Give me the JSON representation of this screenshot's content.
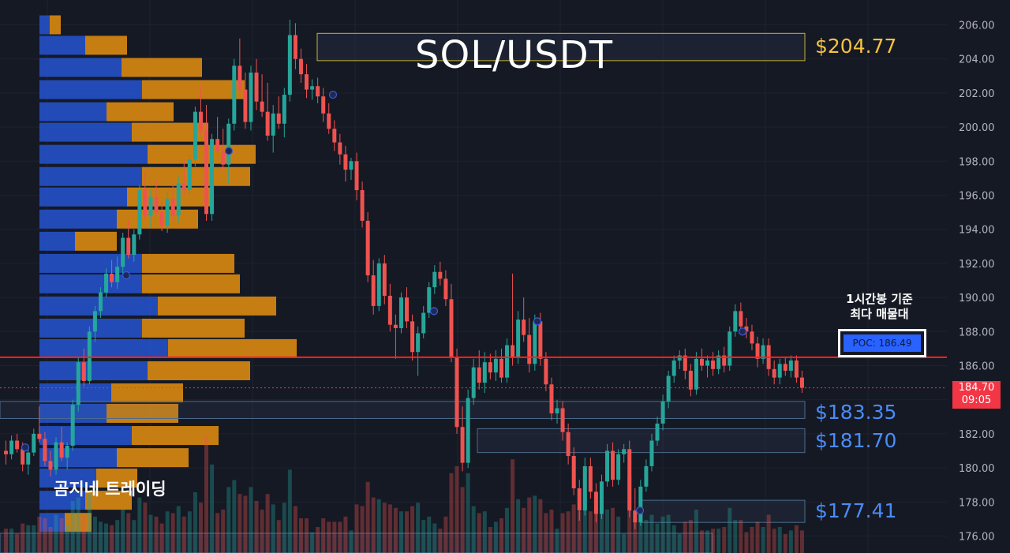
{
  "chart_data": {
    "type": "candlestick",
    "title": "SOL/USDT",
    "ylim": [
      175.5,
      206.5
    ],
    "y_ticks": [
      "206.00",
      "204.00",
      "202.00",
      "200.00",
      "198.00",
      "196.00",
      "194.00",
      "192.00",
      "190.00",
      "188.00",
      "186.00",
      "184.00",
      "182.00",
      "180.00",
      "178.00",
      "176.00"
    ],
    "y_tick_values": [
      206,
      204,
      202,
      200,
      198,
      196,
      194,
      192,
      190,
      188,
      186,
      184,
      182,
      180,
      178,
      176
    ],
    "candles": [
      [
        181.0,
        181.6,
        180.2,
        180.8
      ],
      [
        180.8,
        181.9,
        180.5,
        181.6
      ],
      [
        181.6,
        182.0,
        180.9,
        181.1
      ],
      [
        181.1,
        181.5,
        179.8,
        180.2
      ],
      [
        180.2,
        181.2,
        179.6,
        180.9
      ],
      [
        180.9,
        182.3,
        180.7,
        182.0
      ],
      [
        182.0,
        183.6,
        181.5,
        181.7
      ],
      [
        181.7,
        182.1,
        180.1,
        180.4
      ],
      [
        180.4,
        181.0,
        179.5,
        179.9
      ],
      [
        179.9,
        181.8,
        179.6,
        181.5
      ],
      [
        181.5,
        182.4,
        180.4,
        180.6
      ],
      [
        180.6,
        181.5,
        179.9,
        181.3
      ],
      [
        181.3,
        184.0,
        181.0,
        183.7
      ],
      [
        183.7,
        186.5,
        183.3,
        186.2
      ],
      [
        186.2,
        187.0,
        184.8,
        185.1
      ],
      [
        185.1,
        188.3,
        184.9,
        188.0
      ],
      [
        188.0,
        189.5,
        187.4,
        189.2
      ],
      [
        189.2,
        190.6,
        188.8,
        190.3
      ],
      [
        190.3,
        191.7,
        190.0,
        191.4
      ],
      [
        191.4,
        192.2,
        190.6,
        190.9
      ],
      [
        190.9,
        192.4,
        190.5,
        191.8
      ],
      [
        191.8,
        193.8,
        191.3,
        193.5
      ],
      [
        193.5,
        194.6,
        192.3,
        192.5
      ],
      [
        192.5,
        194.0,
        192.1,
        193.7
      ],
      [
        193.7,
        196.6,
        193.4,
        196.3
      ],
      [
        196.3,
        197.4,
        194.5,
        194.8
      ],
      [
        194.8,
        196.3,
        194.1,
        195.9
      ],
      [
        195.9,
        196.9,
        194.8,
        195.0
      ],
      [
        195.0,
        195.6,
        193.9,
        194.2
      ],
      [
        194.2,
        196.2,
        193.8,
        195.8
      ],
      [
        195.8,
        196.8,
        194.5,
        194.8
      ],
      [
        194.8,
        197.1,
        194.4,
        196.7
      ],
      [
        196.7,
        198.1,
        196.0,
        196.3
      ],
      [
        196.3,
        198.4,
        196.0,
        198.1
      ],
      [
        198.1,
        201.2,
        197.7,
        200.9
      ],
      [
        200.9,
        202.4,
        199.5,
        199.8
      ],
      [
        199.8,
        201.3,
        194.5,
        194.9
      ],
      [
        194.9,
        199.6,
        194.5,
        199.3
      ],
      [
        199.3,
        200.6,
        198.3,
        198.6
      ],
      [
        198.6,
        199.9,
        197.4,
        197.8
      ],
      [
        197.8,
        200.5,
        196.7,
        200.2
      ],
      [
        200.2,
        204.0,
        199.8,
        203.6
      ],
      [
        203.6,
        205.2,
        201.8,
        202.2
      ],
      [
        202.2,
        203.2,
        199.9,
        200.3
      ],
      [
        200.3,
        203.6,
        199.8,
        203.2
      ],
      [
        203.2,
        204.0,
        201.0,
        201.5
      ],
      [
        201.5,
        203.1,
        200.6,
        200.9
      ],
      [
        200.9,
        202.6,
        199.2,
        199.5
      ],
      [
        199.5,
        201.3,
        198.5,
        200.8
      ],
      [
        200.8,
        201.8,
        199.9,
        200.2
      ],
      [
        200.2,
        202.3,
        199.4,
        201.9
      ],
      [
        201.9,
        206.3,
        201.5,
        205.4
      ],
      [
        205.4,
        206.1,
        203.4,
        204.0
      ],
      [
        204.0,
        204.6,
        202.6,
        203.1
      ],
      [
        203.1,
        203.7,
        201.7,
        202.2
      ],
      [
        202.2,
        202.8,
        201.6,
        202.4
      ],
      [
        202.4,
        202.9,
        201.4,
        201.8
      ],
      [
        201.8,
        202.3,
        200.3,
        200.8
      ],
      [
        200.8,
        201.4,
        199.6,
        199.9
      ],
      [
        199.9,
        200.4,
        198.6,
        199.1
      ],
      [
        199.1,
        199.6,
        197.8,
        198.4
      ],
      [
        198.4,
        198.9,
        196.8,
        197.5
      ],
      [
        197.5,
        198.2,
        196.9,
        198.0
      ],
      [
        198.0,
        198.5,
        195.7,
        196.3
      ],
      [
        196.3,
        196.8,
        194.1,
        194.5
      ],
      [
        194.5,
        195.0,
        190.9,
        191.3
      ],
      [
        191.3,
        192.2,
        189.0,
        189.5
      ],
      [
        189.5,
        192.3,
        189.2,
        192.0
      ],
      [
        192.0,
        192.5,
        189.6,
        190.1
      ],
      [
        190.1,
        190.8,
        188.0,
        188.4
      ],
      [
        188.4,
        189.0,
        186.4,
        188.2
      ],
      [
        188.2,
        190.3,
        187.9,
        190.0
      ],
      [
        190.0,
        190.6,
        188.2,
        188.6
      ],
      [
        188.6,
        189.0,
        186.3,
        186.8
      ],
      [
        186.8,
        188.3,
        185.4,
        187.9
      ],
      [
        187.9,
        189.5,
        187.6,
        189.1
      ],
      [
        189.1,
        190.9,
        188.8,
        190.6
      ],
      [
        190.6,
        191.9,
        190.2,
        191.5
      ],
      [
        191.5,
        192.1,
        190.7,
        191.1
      ],
      [
        191.1,
        191.6,
        189.5,
        189.9
      ],
      [
        189.9,
        190.8,
        186.2,
        186.5
      ],
      [
        186.5,
        187.0,
        182.0,
        182.4
      ],
      [
        182.4,
        183.6,
        179.8,
        180.3
      ],
      [
        180.3,
        184.6,
        180.0,
        184.1
      ],
      [
        184.1,
        186.4,
        183.7,
        185.9
      ],
      [
        185.9,
        186.9,
        184.6,
        185.0
      ],
      [
        185.0,
        186.8,
        184.4,
        186.2
      ],
      [
        186.2,
        186.7,
        185.2,
        185.6
      ],
      [
        185.6,
        186.9,
        185.1,
        186.4
      ],
      [
        186.4,
        187.0,
        185.0,
        185.3
      ],
      [
        185.3,
        187.6,
        185.0,
        187.2
      ],
      [
        187.2,
        191.4,
        186.0,
        186.5
      ],
      [
        186.5,
        189.2,
        186.1,
        188.7
      ],
      [
        188.7,
        190.0,
        187.4,
        187.8
      ],
      [
        187.8,
        188.8,
        185.6,
        186.1
      ],
      [
        186.1,
        189.0,
        185.7,
        188.6
      ],
      [
        188.6,
        189.1,
        186.0,
        186.4
      ],
      [
        186.4,
        186.8,
        184.5,
        184.9
      ],
      [
        184.9,
        185.3,
        182.8,
        183.2
      ],
      [
        183.2,
        184.0,
        182.6,
        183.5
      ],
      [
        183.5,
        183.9,
        181.6,
        182.1
      ],
      [
        182.1,
        182.6,
        180.2,
        180.7
      ],
      [
        180.7,
        181.2,
        178.4,
        178.8
      ],
      [
        178.8,
        179.3,
        176.9,
        177.5
      ],
      [
        177.5,
        180.6,
        177.2,
        180.1
      ],
      [
        180.1,
        180.6,
        178.2,
        178.6
      ],
      [
        178.6,
        179.1,
        176.8,
        177.3
      ],
      [
        177.3,
        179.6,
        177.0,
        179.2
      ],
      [
        179.2,
        181.4,
        178.9,
        181.0
      ],
      [
        181.0,
        181.5,
        178.9,
        179.3
      ],
      [
        179.3,
        181.1,
        179.0,
        180.8
      ],
      [
        180.8,
        181.4,
        180.3,
        181.1
      ],
      [
        181.1,
        181.6,
        177.1,
        177.5
      ],
      [
        177.5,
        178.8,
        176.4,
        176.8
      ],
      [
        176.8,
        179.3,
        176.6,
        178.9
      ],
      [
        178.9,
        180.5,
        178.6,
        180.1
      ],
      [
        180.1,
        182.0,
        179.8,
        181.6
      ],
      [
        181.6,
        183.0,
        181.3,
        182.6
      ],
      [
        182.6,
        184.3,
        182.2,
        183.9
      ],
      [
        183.9,
        185.7,
        183.5,
        185.4
      ],
      [
        185.4,
        186.6,
        185.0,
        186.3
      ],
      [
        186.3,
        186.9,
        185.8,
        186.6
      ],
      [
        186.6,
        187.0,
        185.2,
        185.7
      ],
      [
        185.7,
        186.1,
        184.2,
        184.6
      ],
      [
        184.6,
        186.8,
        184.3,
        186.4
      ],
      [
        186.4,
        187.0,
        185.7,
        186.0
      ],
      [
        186.0,
        186.6,
        185.3,
        186.3
      ],
      [
        186.3,
        186.8,
        185.4,
        185.8
      ],
      [
        185.8,
        186.9,
        185.5,
        186.6
      ],
      [
        186.6,
        187.1,
        185.6,
        186.0
      ],
      [
        186.0,
        188.3,
        185.7,
        188.0
      ],
      [
        188.0,
        189.6,
        187.7,
        189.2
      ],
      [
        189.2,
        189.7,
        187.8,
        188.3
      ],
      [
        188.3,
        188.8,
        187.6,
        188.0
      ],
      [
        188.0,
        188.4,
        186.9,
        187.3
      ],
      [
        187.3,
        187.7,
        185.9,
        186.4
      ],
      [
        186.4,
        187.6,
        186.1,
        187.2
      ],
      [
        187.2,
        187.6,
        185.4,
        185.8
      ],
      [
        185.8,
        186.3,
        184.9,
        185.3
      ],
      [
        185.3,
        186.4,
        184.9,
        186.1
      ],
      [
        186.1,
        186.5,
        185.4,
        185.7
      ],
      [
        185.7,
        186.6,
        185.3,
        186.3
      ],
      [
        186.3,
        186.6,
        185.0,
        185.3
      ],
      [
        185.3,
        185.7,
        184.4,
        184.7
      ]
    ],
    "volume_profile": [
      {
        "price": 206.0,
        "buy": 13,
        "sell": 14
      },
      {
        "price": 204.8,
        "buy": 58,
        "sell": 53
      },
      {
        "price": 203.5,
        "buy": 104,
        "sell": 102
      },
      {
        "price": 202.2,
        "buy": 130,
        "sell": 130
      },
      {
        "price": 200.9,
        "buy": 85,
        "sell": 85
      },
      {
        "price": 199.7,
        "buy": 117,
        "sell": 97
      },
      {
        "price": 198.4,
        "buy": 137,
        "sell": 137
      },
      {
        "price": 197.1,
        "buy": 130,
        "sell": 137
      },
      {
        "price": 195.9,
        "buy": 111,
        "sell": 108
      },
      {
        "price": 194.6,
        "buy": 98,
        "sell": 103
      },
      {
        "price": 193.3,
        "buy": 45,
        "sell": 53
      },
      {
        "price": 192.0,
        "buy": 130,
        "sell": 117
      },
      {
        "price": 190.8,
        "buy": 130,
        "sell": 124
      },
      {
        "price": 189.5,
        "buy": 150,
        "sell": 150
      },
      {
        "price": 188.2,
        "buy": 130,
        "sell": 130
      },
      {
        "price": 187.0,
        "buy": 163,
        "sell": 163
      },
      {
        "price": 185.7,
        "buy": 137,
        "sell": 130
      },
      {
        "price": 184.4,
        "buy": 91,
        "sell": 91
      },
      {
        "price": 183.2,
        "buy": 85,
        "sell": 91
      },
      {
        "price": 181.9,
        "buy": 117,
        "sell": 110
      },
      {
        "price": 180.6,
        "buy": 98,
        "sell": 91
      },
      {
        "price": 179.4,
        "buy": 72,
        "sell": 52
      },
      {
        "price": 178.1,
        "buy": 58,
        "sell": 59
      },
      {
        "price": 176.8,
        "buy": 32,
        "sell": 34
      }
    ],
    "levels": [
      {
        "label": "$204.77",
        "top": 205.5,
        "bottom": 203.9,
        "color": "#f5c342",
        "box": "#c9b432"
      },
      {
        "label": "$183.35",
        "top": 183.9,
        "bottom": 182.9,
        "color": "#4a8cf7",
        "box": "#4a6c8c"
      },
      {
        "label": "$181.70",
        "top": 182.3,
        "bottom": 180.9,
        "color": "#4a8cf7",
        "box": "#4a6c8c"
      },
      {
        "label": "$177.41",
        "top": 178.1,
        "bottom": 176.8,
        "color": "#4a8cf7",
        "box": "#4a6c8c"
      }
    ],
    "poc": 186.49,
    "last_price": 184.7,
    "colors": {
      "up": "#26a69a",
      "down": "#ef5350",
      "buy_profile": "#2451c9",
      "sell_profile": "#d98a12",
      "poc_line": "#ff1f1f",
      "background": "#151924"
    }
  },
  "labels": {
    "title": "SOL/USDT",
    "level_1": "$204.77",
    "level_2": "$183.35",
    "level_3": "$181.70",
    "level_4": "$177.41",
    "watermark": "곰지네 트레이딩",
    "note_line1": "1시간봉 기준",
    "note_line2": "최다 매물대",
    "poc_text": "POC: 186.49",
    "price_tag_value": "184.70",
    "price_tag_time": "09:05"
  }
}
